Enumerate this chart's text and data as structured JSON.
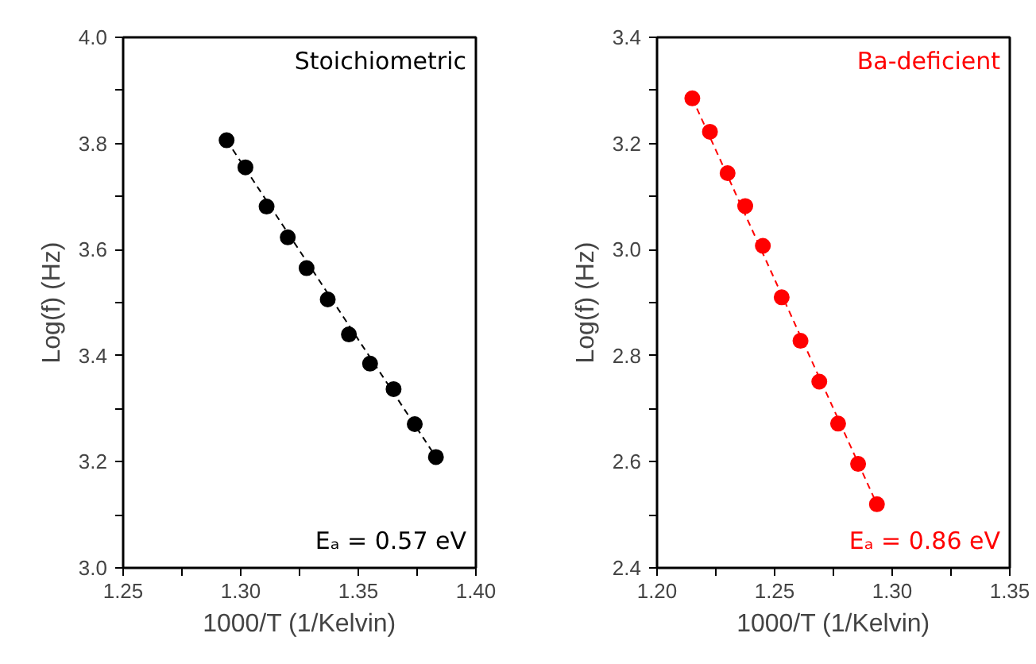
{
  "chart_data": [
    {
      "type": "scatter",
      "xlabel": "1000/T (1/Kelvin)",
      "ylabel": "Log(f) (Hz)",
      "grid": false,
      "xlim": [
        1.25,
        1.4
      ],
      "ylim": [
        3.0,
        4.0
      ],
      "xticks": [
        {
          "value": 1.25,
          "label": "1.25"
        },
        {
          "value": 1.275,
          "label": null
        },
        {
          "value": 1.3,
          "label": "1.30"
        },
        {
          "value": 1.325,
          "label": null
        },
        {
          "value": 1.35,
          "label": "1.35"
        },
        {
          "value": 1.375,
          "label": null
        },
        {
          "value": 1.4,
          "label": "1.40"
        }
      ],
      "yticks": [
        {
          "value": 3.0,
          "label": "3.0"
        },
        {
          "value": 3.1,
          "label": null
        },
        {
          "value": 3.2,
          "label": "3.2"
        },
        {
          "value": 3.3,
          "label": null
        },
        {
          "value": 3.4,
          "label": "3.4"
        },
        {
          "value": 3.5,
          "label": null
        },
        {
          "value": 3.6,
          "label": "3.6"
        },
        {
          "value": 3.7,
          "label": null
        },
        {
          "value": 3.8,
          "label": "3.8"
        },
        {
          "value": 3.9,
          "label": null
        },
        {
          "value": 4.0,
          "label": "4.0"
        }
      ],
      "annotations": [
        "Stoichiometric",
        "Eₐ = 0.57 eV"
      ],
      "series": [
        {
          "marker": "circle",
          "color": "#000000",
          "x": [
            1.294,
            1.302,
            1.311,
            1.32,
            1.328,
            1.337,
            1.346,
            1.355,
            1.365,
            1.374,
            1.383
          ],
          "values": [
            3.806,
            3.755,
            3.681,
            3.623,
            3.565,
            3.506,
            3.44,
            3.385,
            3.337,
            3.271,
            3.209
          ]
        },
        {
          "type": "line",
          "marker": "none",
          "line_style": "dashed",
          "color": "#000000",
          "x": [
            1.294,
            1.383
          ],
          "values": [
            3.806,
            3.209
          ]
        }
      ]
    },
    {
      "type": "scatter",
      "xlabel": "1000/T (1/Kelvin)",
      "ylabel": "Log(f) (Hz)",
      "grid": false,
      "xlim": [
        1.2,
        1.35
      ],
      "ylim": [
        2.4,
        3.4
      ],
      "xticks": [
        {
          "value": 1.2,
          "label": "1.20"
        },
        {
          "value": 1.225,
          "label": null
        },
        {
          "value": 1.25,
          "label": "1.25"
        },
        {
          "value": 1.275,
          "label": null
        },
        {
          "value": 1.3,
          "label": "1.30"
        },
        {
          "value": 1.325,
          "label": null
        },
        {
          "value": 1.35,
          "label": "1.35"
        }
      ],
      "yticks": [
        {
          "value": 2.4,
          "label": "2.4"
        },
        {
          "value": 2.5,
          "label": null
        },
        {
          "value": 2.6,
          "label": "2.6"
        },
        {
          "value": 2.7,
          "label": null
        },
        {
          "value": 2.8,
          "label": "2.8"
        },
        {
          "value": 2.9,
          "label": null
        },
        {
          "value": 3.0,
          "label": "3.0"
        },
        {
          "value": 3.1,
          "label": null
        },
        {
          "value": 3.2,
          "label": "3.2"
        },
        {
          "value": 3.3,
          "label": null
        },
        {
          "value": 3.4,
          "label": "3.4"
        }
      ],
      "annotations": [
        "Ba-deficient",
        "Eₐ = 0.86 eV"
      ],
      "series": [
        {
          "marker": "circle",
          "color": "#ff0000",
          "x": [
            1.215,
            1.2225,
            1.23,
            1.2375,
            1.245,
            1.253,
            1.261,
            1.269,
            1.277,
            1.2855,
            1.2935
          ],
          "values": [
            3.285,
            3.222,
            3.144,
            3.082,
            3.007,
            2.91,
            2.828,
            2.751,
            2.672,
            2.596,
            2.52
          ]
        },
        {
          "type": "line",
          "marker": "none",
          "line_style": "dashed",
          "color": "#ff0000",
          "x": [
            1.215,
            1.2935
          ],
          "values": [
            3.285,
            2.52
          ]
        }
      ]
    }
  ]
}
